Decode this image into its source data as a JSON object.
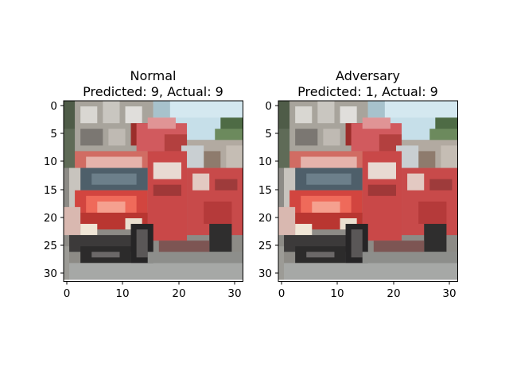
{
  "figure": {
    "panels": [
      {
        "title_line1": "Normal",
        "title_line2": "Predicted: 9, Actual: 9"
      },
      {
        "title_line1": "Adversary",
        "title_line2": "Predicted: 1, Actual: 9"
      }
    ],
    "x_ticks": [
      "0",
      "10",
      "20",
      "30"
    ],
    "y_ticks": [
      "0",
      "5",
      "10",
      "15",
      "20",
      "25",
      "30"
    ],
    "image_content": "pixelated 32x32 photo of a red fire truck on a street with buildings and sky"
  }
}
